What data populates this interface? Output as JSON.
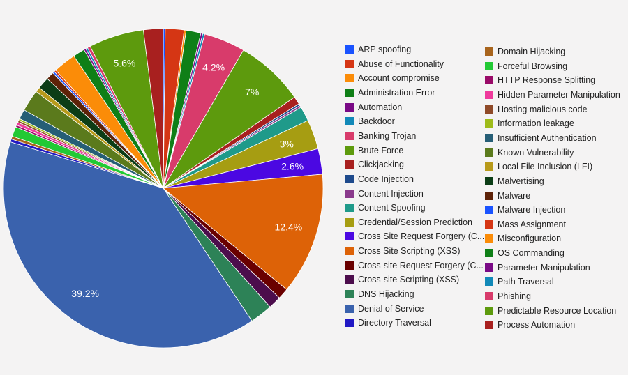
{
  "chart_data": {
    "type": "pie",
    "title": "",
    "legend_placement": "right",
    "slices": [
      {
        "label": "ARP spoofing",
        "value": 0.2,
        "color": "#1a53ff"
      },
      {
        "label": "Abuse of Functionality",
        "value": 1.9,
        "color": "#d53614"
      },
      {
        "label": "Account compromise",
        "value": 0.2,
        "color": "#fb8c08"
      },
      {
        "label": "Administration Error",
        "value": 1.5,
        "color": "#0f7f17"
      },
      {
        "label": "Automation",
        "value": 0.2,
        "color": "#7a0a86"
      },
      {
        "label": "Backdoor",
        "value": 0.2,
        "color": "#1289b8"
      },
      {
        "label": "Banking Trojan",
        "value": 4.2,
        "color": "#d83b6b",
        "display": "4.2%"
      },
      {
        "label": "Brute Force",
        "value": 7.0,
        "color": "#5d9a0d",
        "display": "7%"
      },
      {
        "label": "Clickjacking",
        "value": 0.8,
        "color": "#a8201f"
      },
      {
        "label": "Code Injection",
        "value": 0.2,
        "color": "#1e4a8c"
      },
      {
        "label": "Content Injection",
        "value": 0.2,
        "color": "#8a3a8c"
      },
      {
        "label": "Content Spoofing",
        "value": 1.5,
        "color": "#1f9a8a"
      },
      {
        "label": "Credential/Session Prediction",
        "value": 3.0,
        "color": "#a69d12",
        "display": "3%"
      },
      {
        "label": "Cross Site Request Forgery (C...",
        "value": 2.6,
        "color": "#4b08e2",
        "display": "2.6%"
      },
      {
        "label": "Cross Site Scripting (XSS)",
        "value": 12.4,
        "color": "#dd6207",
        "display": "12.4%"
      },
      {
        "label": "Cross-site Request Forgery (C...",
        "value": 1.1,
        "color": "#6a0000"
      },
      {
        "label": "Cross-site Scripting (XSS)",
        "value": 1.3,
        "color": "#4c0d4c"
      },
      {
        "label": "DNS Hijacking",
        "value": 2.3,
        "color": "#2d8257"
      },
      {
        "label": "Denial of Service",
        "value": 39.2,
        "color": "#3a62ad",
        "display": "39.2%"
      },
      {
        "label": "Directory Traversal",
        "value": 0.3,
        "color": "#2118c4"
      },
      {
        "label": "Domain Hijacking",
        "value": 0.3,
        "color": "#a8641c"
      },
      {
        "label": "Forceful Browsing",
        "value": 1.0,
        "color": "#22c934"
      },
      {
        "label": "HTTP Response Splitting",
        "value": 0.2,
        "color": "#990a68"
      },
      {
        "label": "Hidden Parameter Manipulation",
        "value": 0.3,
        "color": "#ef3a9c"
      },
      {
        "label": "Hosting malicious code",
        "value": 0.2,
        "color": "#8f4a28"
      },
      {
        "label": "Information leakage",
        "value": 0.2,
        "color": "#9ebb1a"
      },
      {
        "label": "Insufficient Authentication",
        "value": 1.0,
        "color": "#265e76"
      },
      {
        "label": "Known Vulnerability",
        "value": 2.2,
        "color": "#5b7a1c"
      },
      {
        "label": "Local File Inclusion (LFI)",
        "value": 0.5,
        "color": "#b89a1a"
      },
      {
        "label": "Malvertising",
        "value": 1.2,
        "color": "#0c3d16"
      },
      {
        "label": "Malware",
        "value": 0.8,
        "color": "#5e2208"
      },
      {
        "label": "Malware Injection",
        "value": 0.2,
        "color": "#1a53ff"
      },
      {
        "label": "Mass Assignment",
        "value": 0.2,
        "color": "#d53614"
      },
      {
        "label": "Misconfiguration",
        "value": 2.3,
        "color": "#fb8c08"
      },
      {
        "label": "OS Commanding",
        "value": 1.2,
        "color": "#0f7f17"
      },
      {
        "label": "Parameter Manipulation",
        "value": 0.2,
        "color": "#7a0a86"
      },
      {
        "label": "Path Traversal",
        "value": 0.2,
        "color": "#1289b8"
      },
      {
        "label": "Phishing",
        "value": 0.3,
        "color": "#d83b6b"
      },
      {
        "label": "Predictable Resource Location",
        "value": 5.6,
        "color": "#5d9a0d",
        "display": "5.6%"
      },
      {
        "label": "Process Automation",
        "value": 2.0,
        "color": "#a8201f"
      }
    ]
  }
}
